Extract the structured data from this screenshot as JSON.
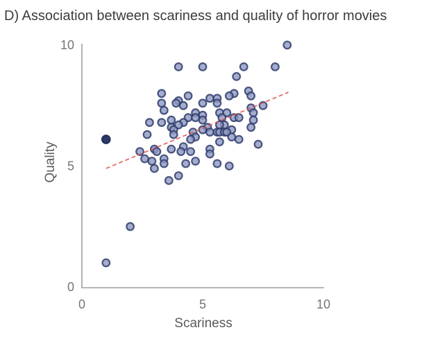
{
  "title": "D) Association between scariness and quality of horror movies",
  "chart_data": {
    "type": "scatter",
    "title": "D) Association between scariness and quality of horror movies",
    "xlabel": "Scariness",
    "ylabel": "Quality",
    "xlim": [
      0,
      10
    ],
    "ylim": [
      0,
      10
    ],
    "xticks": [
      0,
      5,
      10
    ],
    "yticks": [
      0,
      5,
      10
    ],
    "grid": false,
    "legend": "none",
    "points": [
      [
        8.5,
        10.0
      ],
      [
        4.0,
        9.1
      ],
      [
        5.0,
        9.1
      ],
      [
        6.7,
        9.1
      ],
      [
        8.0,
        9.1
      ],
      [
        6.4,
        8.7
      ],
      [
        3.3,
        8.0
      ],
      [
        6.3,
        8.0
      ],
      [
        6.9,
        8.1
      ],
      [
        7.0,
        7.9
      ],
      [
        6.1,
        7.9
      ],
      [
        4.4,
        7.9
      ],
      [
        5.3,
        7.8
      ],
      [
        5.6,
        7.8
      ],
      [
        4.0,
        7.7
      ],
      [
        3.3,
        7.6
      ],
      [
        3.9,
        7.6
      ],
      [
        5.6,
        7.6
      ],
      [
        5.0,
        7.6
      ],
      [
        4.2,
        7.5
      ],
      [
        7.5,
        7.5
      ],
      [
        7.0,
        7.4
      ],
      [
        3.4,
        7.3
      ],
      [
        4.7,
        7.2
      ],
      [
        5.0,
        7.1
      ],
      [
        5.7,
        7.2
      ],
      [
        6.0,
        7.2
      ],
      [
        7.1,
        7.2
      ],
      [
        4.7,
        7.0
      ],
      [
        7.1,
        6.9
      ],
      [
        2.8,
        6.8
      ],
      [
        3.3,
        6.8
      ],
      [
        3.7,
        6.9
      ],
      [
        3.7,
        6.6
      ],
      [
        4.4,
        7.0
      ],
      [
        6.3,
        7.0
      ],
      [
        6.5,
        7.0
      ],
      [
        5.8,
        7.0
      ],
      [
        4.2,
        6.8
      ],
      [
        4.0,
        6.7
      ],
      [
        5.0,
        6.9
      ],
      [
        3.8,
        6.5
      ],
      [
        5.9,
        6.7
      ],
      [
        5.7,
        6.7
      ],
      [
        7.0,
        6.6
      ],
      [
        2.7,
        6.3
      ],
      [
        3.8,
        6.3
      ],
      [
        5.2,
        6.6
      ],
      [
        5.0,
        6.5
      ],
      [
        5.3,
        6.4
      ],
      [
        4.6,
        6.4
      ],
      [
        6.2,
        6.5
      ],
      [
        5.6,
        6.4
      ],
      [
        5.7,
        6.4
      ],
      [
        5.9,
        6.4
      ],
      [
        6.0,
        6.4
      ],
      [
        4.7,
        6.2
      ],
      [
        4.5,
        6.1
      ],
      [
        6.2,
        6.2
      ],
      [
        6.5,
        6.1
      ],
      [
        5.7,
        6.0
      ],
      [
        7.3,
        5.9
      ],
      [
        4.2,
        5.8
      ],
      [
        2.4,
        5.6
      ],
      [
        3.0,
        5.7
      ],
      [
        3.1,
        5.6
      ],
      [
        3.7,
        5.7
      ],
      [
        4.1,
        5.6
      ],
      [
        4.5,
        5.6
      ],
      [
        5.3,
        5.7
      ],
      [
        5.3,
        5.5
      ],
      [
        2.6,
        5.3
      ],
      [
        3.4,
        5.3
      ],
      [
        2.9,
        5.2
      ],
      [
        3.4,
        5.1
      ],
      [
        4.3,
        5.1
      ],
      [
        4.7,
        5.2
      ],
      [
        5.6,
        5.1
      ],
      [
        6.1,
        5.0
      ],
      [
        3.0,
        4.9
      ],
      [
        3.6,
        4.4
      ],
      [
        4.0,
        4.6
      ],
      [
        2.0,
        2.5
      ],
      [
        1.0,
        1.0
      ]
    ],
    "dark_point": [
      1.0,
      6.1
    ],
    "trend_line": {
      "x1": 1.0,
      "y1": 4.9,
      "x2": 8.55,
      "y2": 8.05,
      "style": "dashed"
    }
  },
  "colors": {
    "point_fill": "#8d99c0",
    "point_stroke": "#303c6d",
    "dark_point_fill": "#2c3868",
    "dark_point_stroke": "#232e59",
    "trend": "#e0534f",
    "axis": "#9e9e9e",
    "tick_text": "#757575",
    "axis_label_text": "#5a5a5a",
    "title_text": "#3c3c3c",
    "background": "#ffffff"
  }
}
